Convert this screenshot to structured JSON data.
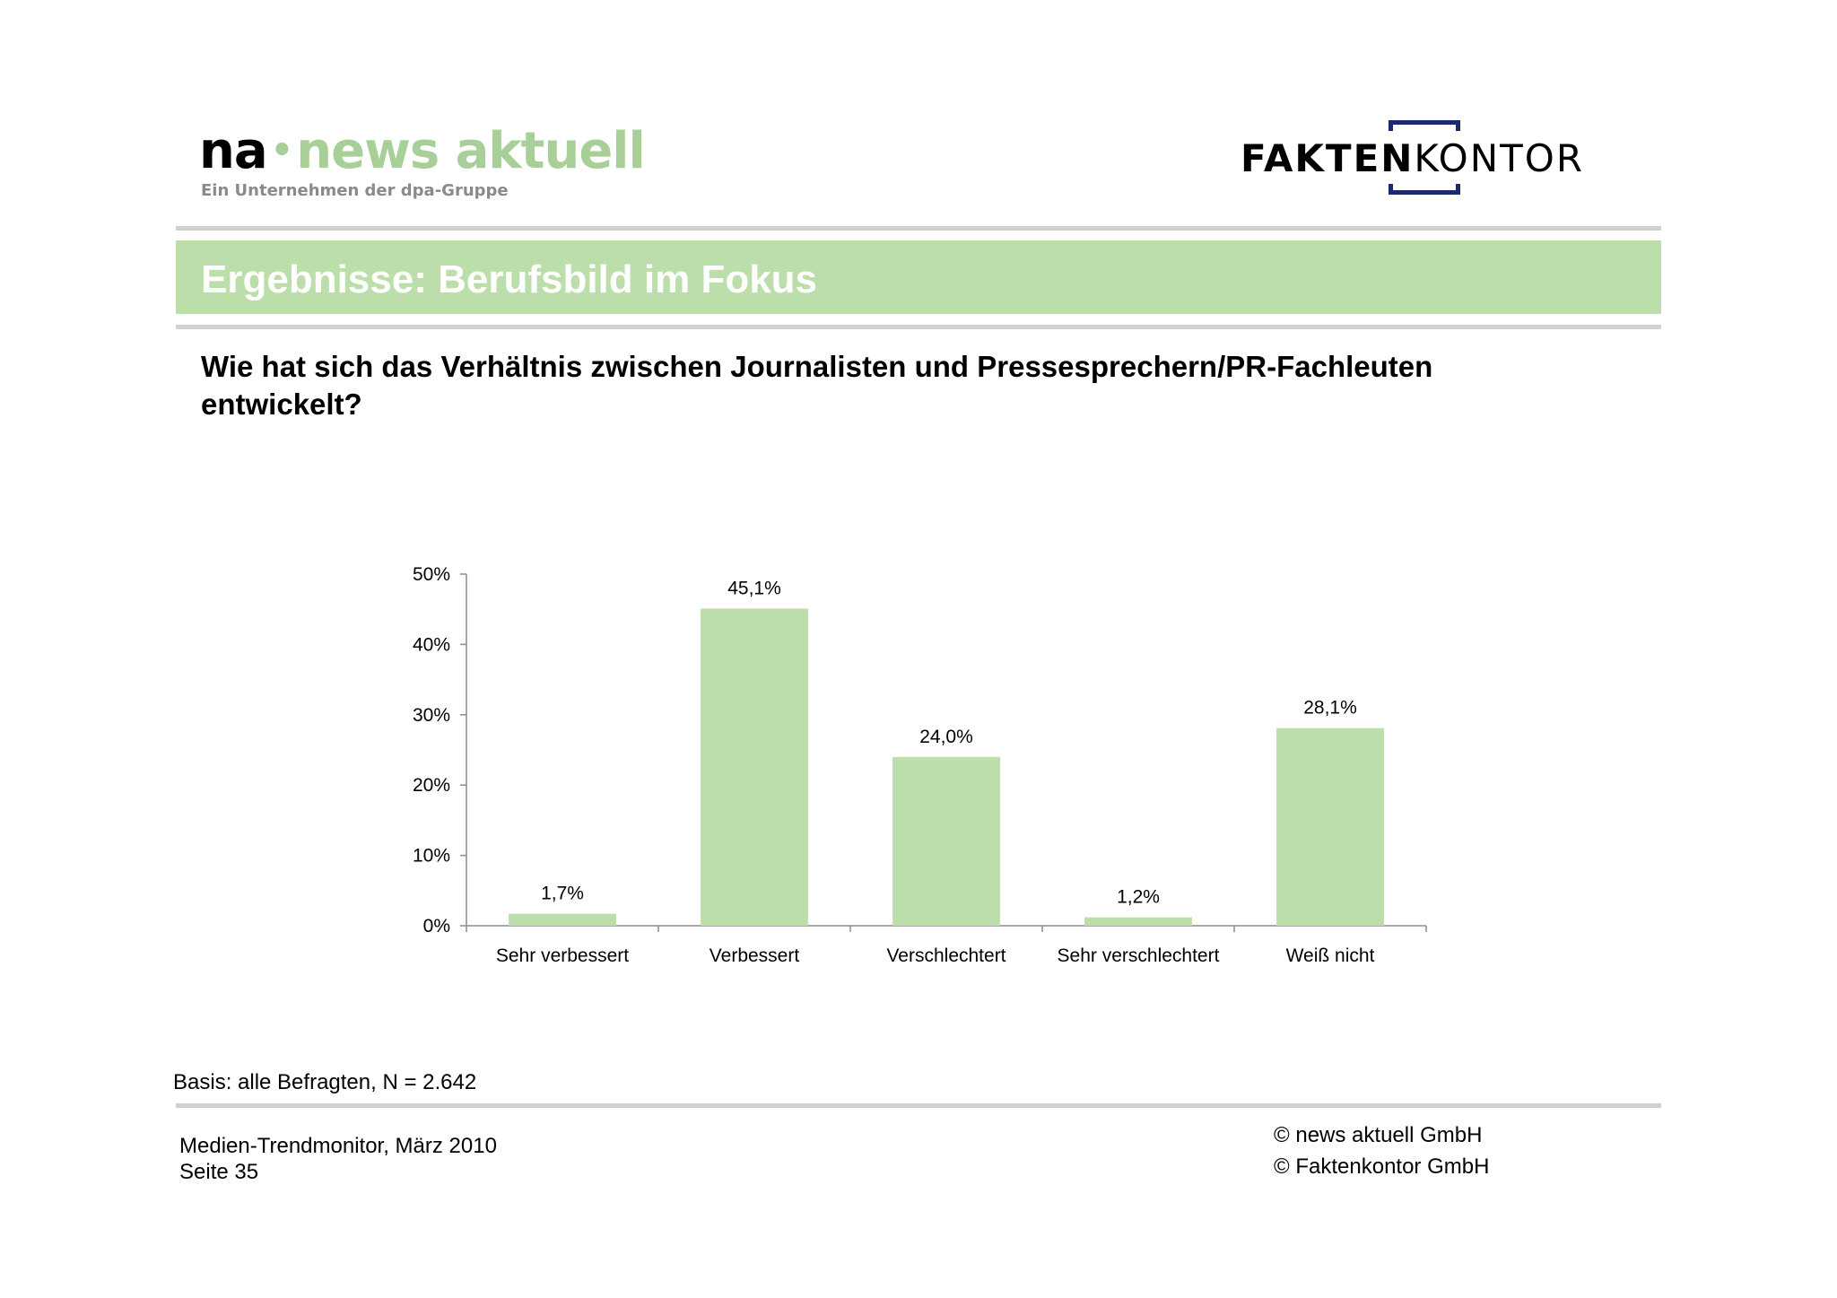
{
  "header": {
    "na_logo": {
      "prefix": "na",
      "dot": "•",
      "name": "news aktuell",
      "subtitle": "Ein Unternehmen der dpa-Gruppe"
    },
    "fk_logo": {
      "bold": "FAKTEN",
      "light": "KONTOR"
    }
  },
  "banner": {
    "title": "Ergebnisse: Berufsbild im Fokus"
  },
  "question": "Wie hat sich das Verhältnis zwischen Journalisten und Pressesprechern/PR-Fachleuten entwickelt?",
  "chart_data": {
    "type": "bar",
    "title": "",
    "xlabel": "",
    "ylabel": "",
    "categories": [
      "Sehr verbessert",
      "Verbessert",
      "Verschlechtert",
      "Sehr verschlechtert",
      "Weiß nicht"
    ],
    "values": [
      1.7,
      45.1,
      24.0,
      1.2,
      28.1
    ],
    "value_labels": [
      "1,7%",
      "45,1%",
      "24,0%",
      "1,2%",
      "28,1%"
    ],
    "ylim": [
      0,
      50
    ],
    "yticks": [
      0,
      10,
      20,
      30,
      40,
      50
    ],
    "ytick_labels": [
      "0%",
      "10%",
      "20%",
      "30%",
      "40%",
      "50%"
    ],
    "grid": false,
    "legend": "none",
    "bar_color": "#bcdeab"
  },
  "basis": "Basis: alle Befragten, N = 2.642",
  "footer": {
    "left_line1": "Medien-Trendmonitor, März 2010",
    "left_line2": "Seite 35",
    "right_line1": "© news aktuell GmbH",
    "right_line2": "© Faktenkontor GmbH"
  },
  "colors": {
    "brand_green": "#bcdeab",
    "logo_green": "#a9cf98",
    "rule_gray": "#d0d0d0",
    "fk_navy": "#1a2a6a"
  }
}
